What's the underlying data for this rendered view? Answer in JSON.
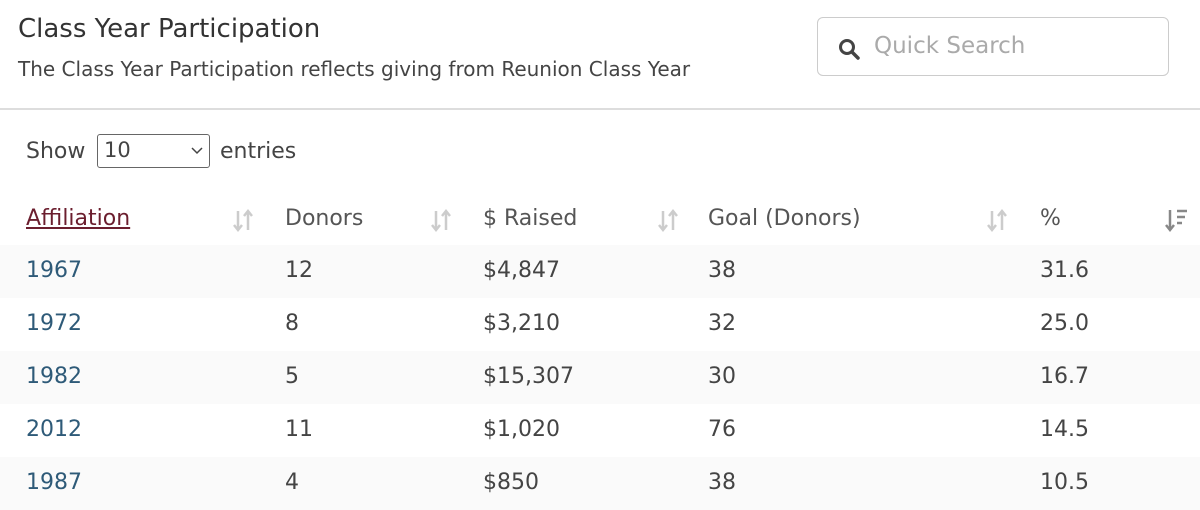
{
  "header": {
    "title": "Class Year Participation",
    "subtitle": "The Class Year Participation reflects giving from Reunion Class Year"
  },
  "search": {
    "placeholder": "Quick Search"
  },
  "length": {
    "before": "Show",
    "value": "10",
    "after": "entries"
  },
  "table": {
    "columns": [
      "Affiliation",
      "Donors",
      "$ Raised",
      "Goal (Donors)",
      "%"
    ],
    "rows": [
      [
        "1967",
        "12",
        "$4,847",
        "38",
        "31.6"
      ],
      [
        "1972",
        "8",
        "$3,210",
        "32",
        "25.0"
      ],
      [
        "1982",
        "5",
        "$15,307",
        "30",
        "16.7"
      ],
      [
        "2012",
        "11",
        "$1,020",
        "76",
        "14.5"
      ],
      [
        "1987",
        "4",
        "$850",
        "38",
        "10.5"
      ]
    ]
  }
}
